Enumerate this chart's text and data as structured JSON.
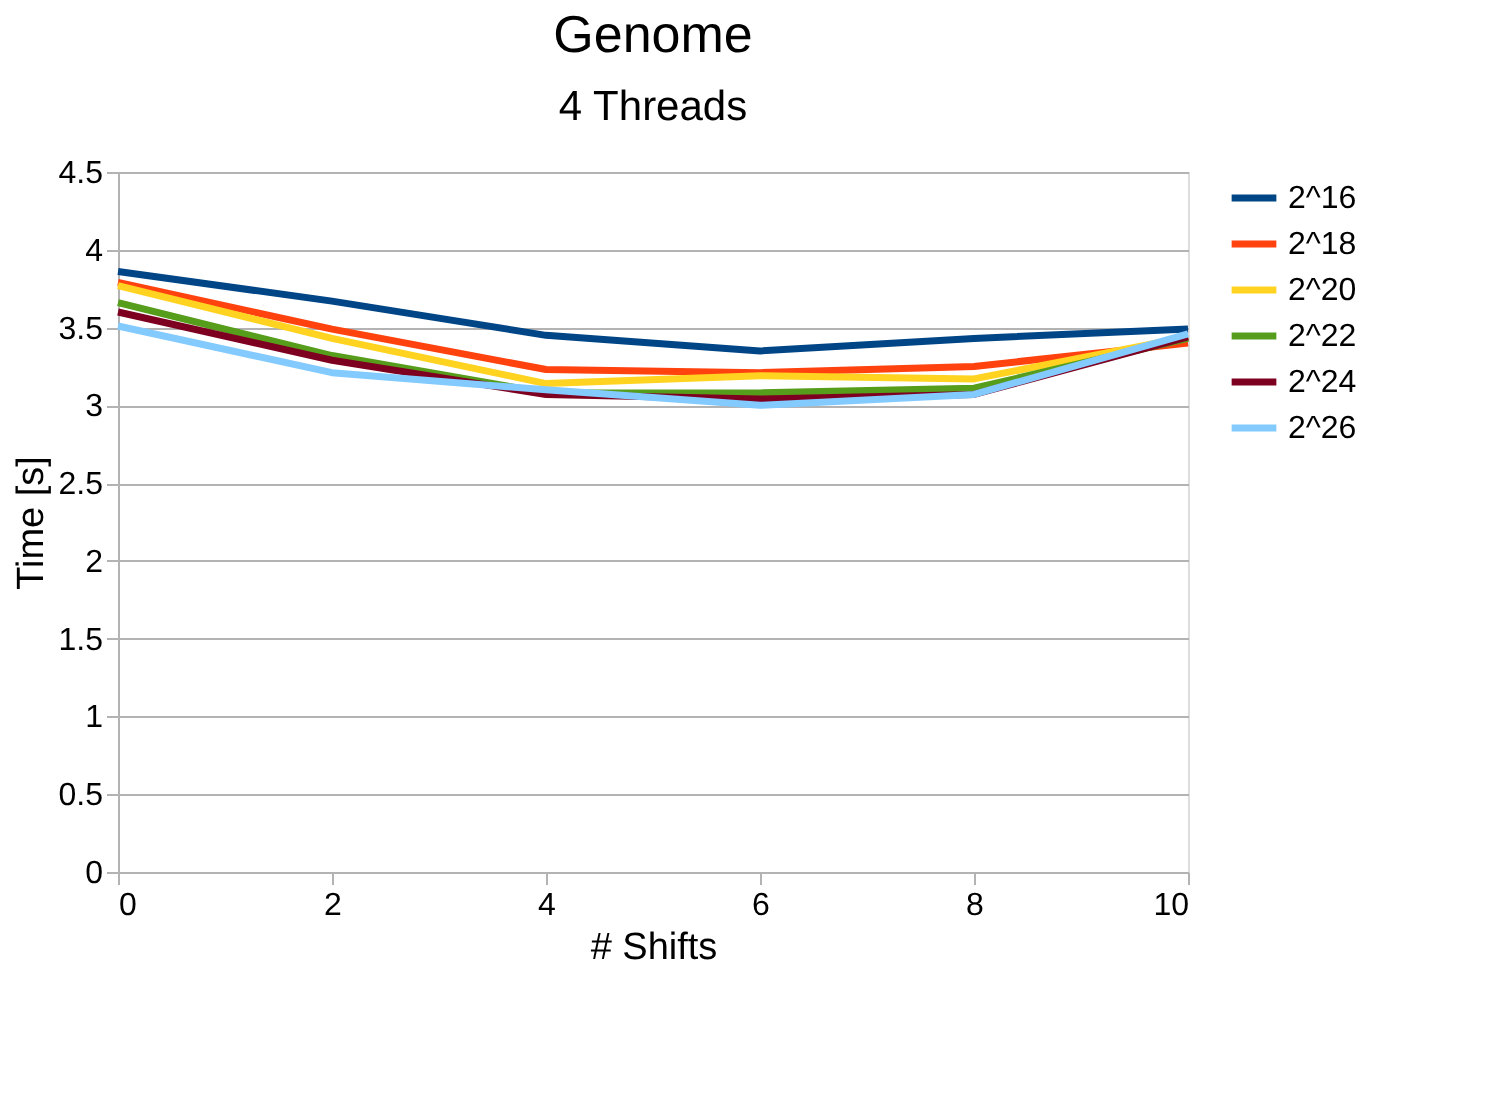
{
  "chart_data": {
    "type": "line",
    "title": "Genome",
    "subtitle": "4 Threads",
    "xlabel": "# Shifts",
    "ylabel": "Time [s]",
    "x": [
      0,
      2,
      4,
      6,
      8,
      10
    ],
    "series": [
      {
        "name": "2^16",
        "color": "#004586",
        "values": [
          3.86,
          3.67,
          3.45,
          3.35,
          3.43,
          3.49
        ]
      },
      {
        "name": "2^18",
        "color": "#ff420e",
        "values": [
          3.79,
          3.49,
          3.23,
          3.21,
          3.25,
          3.4
        ]
      },
      {
        "name": "2^20",
        "color": "#ffd320",
        "values": [
          3.77,
          3.43,
          3.14,
          3.19,
          3.17,
          3.44
        ]
      },
      {
        "name": "2^22",
        "color": "#579d1c",
        "values": [
          3.66,
          3.32,
          3.08,
          3.08,
          3.11,
          3.43
        ]
      },
      {
        "name": "2^24",
        "color": "#7e0021",
        "values": [
          3.6,
          3.29,
          3.07,
          3.04,
          3.07,
          3.44
        ]
      },
      {
        "name": "2^26",
        "color": "#83caff",
        "values": [
          3.51,
          3.21,
          3.1,
          3.0,
          3.07,
          3.46
        ]
      }
    ],
    "xlim": [
      0,
      10
    ],
    "xticks": [
      0,
      2,
      4,
      6,
      8,
      10
    ],
    "ylim": [
      0,
      4.5
    ],
    "yticks": [
      0,
      0.5,
      1,
      1.5,
      2,
      2.5,
      3,
      3.5,
      4,
      4.5
    ],
    "grid": "y",
    "legend": "right",
    "marker": "none",
    "line_style": "solid"
  }
}
